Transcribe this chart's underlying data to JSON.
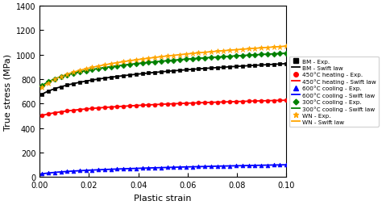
{
  "title": "",
  "xlabel": "Plastic strain",
  "ylabel": "True stress (MPa)",
  "xlim": [
    0.0,
    0.1
  ],
  "ylim": [
    0,
    1400
  ],
  "yticks": [
    0,
    200,
    400,
    600,
    800,
    1000,
    1200,
    1400
  ],
  "xticks": [
    0.0,
    0.02,
    0.04,
    0.06,
    0.08,
    0.1
  ],
  "curves": {
    "BM": {
      "color": "black",
      "K": 1200,
      "eps0": 0.006,
      "n": 0.115,
      "exp_marker": "s",
      "label_exp": "BM - Exp.",
      "label_law": "BM - Swift law"
    },
    "450C_heating": {
      "color": "red",
      "K": 760,
      "eps0": 0.007,
      "n": 0.085,
      "exp_marker": "o",
      "label_exp": "450°C heating - Exp.",
      "label_law": "450°C heating - Swift law"
    },
    "600C_cooling": {
      "color": "blue",
      "K": 240,
      "eps0": 0.002,
      "n": 0.38,
      "exp_marker": "^",
      "label_exp": "600°C cooling - Exp.",
      "label_law": "600°C cooling - Swift law"
    },
    "300C_cooling": {
      "color": "green",
      "K": 1270,
      "eps0": 0.004,
      "n": 0.1,
      "exp_marker": "D",
      "label_exp": "300°C cooling - Exp.",
      "label_law": "300°C cooling - Swift law"
    },
    "WN": {
      "color": "orange",
      "K": 1420,
      "eps0": 0.004,
      "n": 0.125,
      "exp_marker": "*",
      "label_exp": "WN - Exp.",
      "label_law": "WN - Swift law"
    }
  },
  "figsize": [
    4.74,
    2.55
  ],
  "dpi": 100
}
